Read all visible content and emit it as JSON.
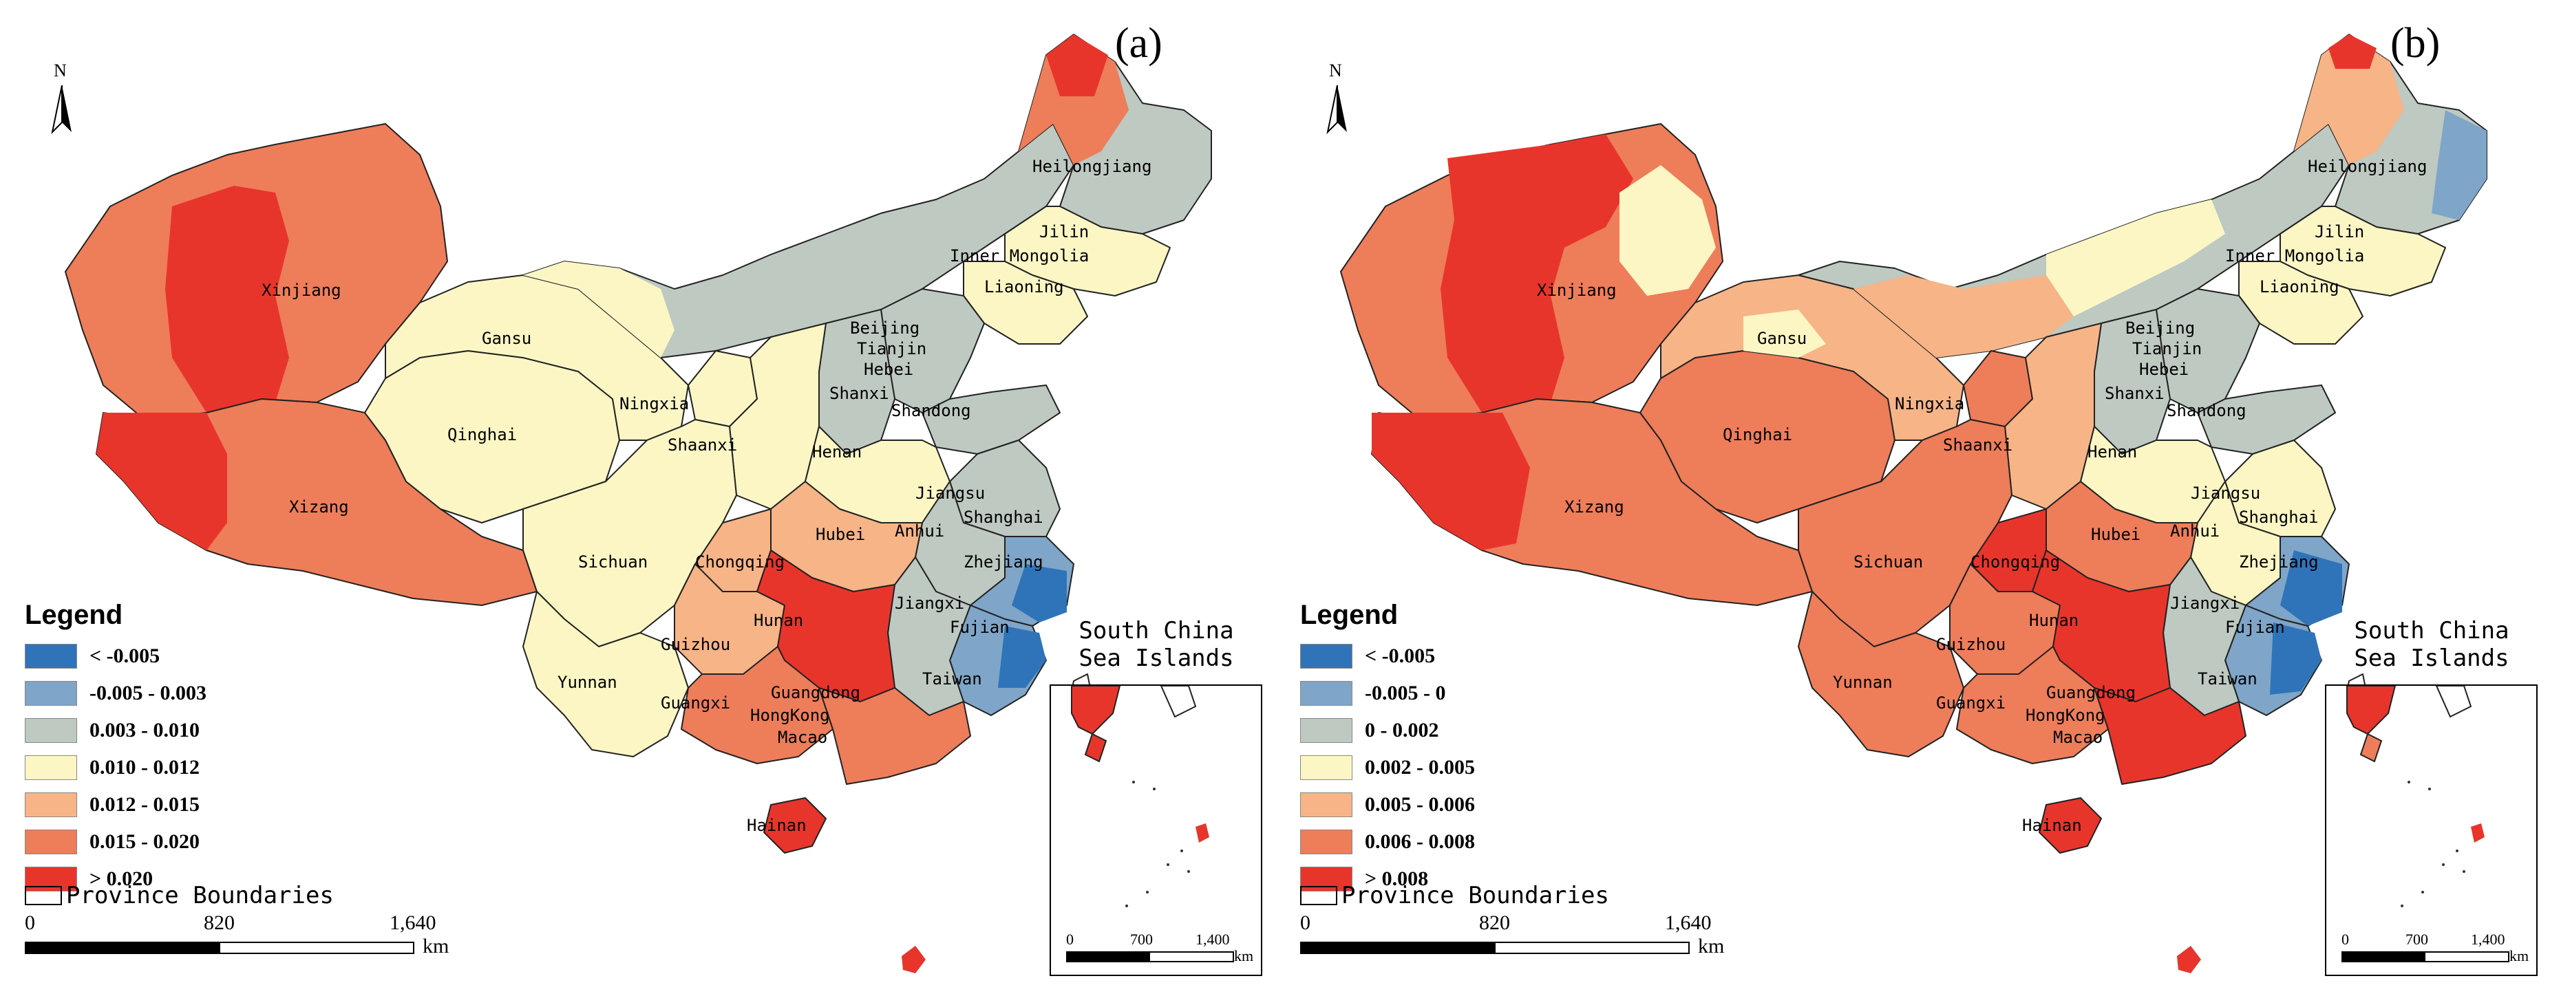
{
  "panels": [
    {
      "id": "a",
      "tag": "(a)",
      "north": "N",
      "legend": {
        "title": "Legend",
        "classes": [
          {
            "label": "< -0.005",
            "color": "#2f74b8"
          },
          {
            "label": "-0.005 - 0.003",
            "color": "#7fa5c8"
          },
          {
            "label": "0.003 - 0.010",
            "color": "#bdc9c1"
          },
          {
            "label": "0.010 - 0.012",
            "color": "#fbf6c4"
          },
          {
            "label": "0.012 - 0.015",
            "color": "#f6b487"
          },
          {
            "label": "0.015 - 0.020",
            "color": "#ee7d5a"
          },
          {
            "label": "> 0.020",
            "color": "#e8352c"
          }
        ]
      },
      "boundaries_label": "Province Boundaries",
      "scale": {
        "ticks": [
          "0",
          "820",
          "1,640"
        ],
        "unit": "km"
      },
      "inset": {
        "title_line1": "South China",
        "title_line2": "Sea Islands",
        "ticks": [
          "0",
          "700",
          "1,400"
        ],
        "unit": "km"
      }
    },
    {
      "id": "b",
      "tag": "(b)",
      "north": "N",
      "legend": {
        "title": "Legend",
        "classes": [
          {
            "label": "< -0.005",
            "color": "#2f74b8"
          },
          {
            "label": "-0.005 - 0",
            "color": "#7fa5c8"
          },
          {
            "label": "0 - 0.002",
            "color": "#bdc9c1"
          },
          {
            "label": "0.002 - 0.005",
            "color": "#fbf6c4"
          },
          {
            "label": "0.005 - 0.006",
            "color": "#f6b487"
          },
          {
            "label": "0.006 - 0.008",
            "color": "#ee7d5a"
          },
          {
            "label": "> 0.008",
            "color": "#e8352c"
          }
        ]
      },
      "boundaries_label": "Province Boundaries",
      "scale": {
        "ticks": [
          "0",
          "820",
          "1,640"
        ],
        "unit": "km"
      },
      "inset": {
        "title_line1": "South China",
        "title_line2": "Sea Islands",
        "ticks": [
          "0",
          "700",
          "1,400"
        ],
        "unit": "km"
      }
    }
  ],
  "provinces": {
    "a": {
      "Heilongjiang": "Heilongjiang",
      "Jilin": "Jilin",
      "Liaoning": "Liaoning",
      "InnerMongolia": "Inner Mongolia",
      "Xinjiang": "Xinjiang",
      "Gansu": "Gansu",
      "Qinghai": "Qinghai",
      "Xizang": "Xizang",
      "Ningxia": "Ningxia",
      "Shaanxi": "Shaanxi",
      "Shanxi": "Shanxi",
      "Beijing": "Beijing",
      "Tianjin": "Tianjin",
      "Hebei": "Hebei",
      "Shandong": "Shandong",
      "Henan": "Henan",
      "Jiangsu": "Jiangsu",
      "Shanghai": "Shanghai",
      "Anhui": "Anhui",
      "Hubei": "Hubei",
      "Sichuan": "Sichuan",
      "Chongqing": "Chongqing",
      "Zhejiang": "Zhejiang",
      "Hunan": "Hunan",
      "Jiangxi": "Jiangxi",
      "Fujian": "Fujian",
      "Guizhou": "Guizhou",
      "Taiwan": "Taiwan",
      "Yunnan": "Yunnan",
      "Guangxi": "Guangxi",
      "Guangdong": "Guangdong",
      "HongKong": "HongKong",
      "Macao": "Macao",
      "Hainan": "Hainan"
    },
    "b": {
      "Heilongjiang": "Heilongjiang",
      "Jilin": "Jilin",
      "Liaoning": "Liaoning",
      "InnerMongolia": "Inner Mongolia",
      "Xinjiang": "Xinjiang",
      "Gansu": "Gansu",
      "Qinghai": "Qinghai",
      "Xizang": "Xizang",
      "Ningxia": "Ningxia",
      "Shaanxi": "Shaanxi",
      "Shanxi": "Shanxi",
      "Beijing": "Beijing",
      "Tianjin": "Tianjin",
      "Hebei": "Hebei",
      "Shandong": "Shandong",
      "Henan": "Henan",
      "Jiangsu": "Jiangsu",
      "Shanghai": "Shanghai",
      "Anhui": "Anhui",
      "Hubei": "Hubei",
      "Sichuan": "Sichuan",
      "Chongqing": "Chongqing",
      "Zhejiang": "Zhejiang",
      "Hunan": "Hunan",
      "Jiangxi": "Jiangxi",
      "Fujian": "Fujian",
      "Guizhou": "Guizhou",
      "Taiwan": "Taiwan",
      "Yunnan": "Yunnan",
      "Guangxi": "Guangxi",
      "Guangdong": "Guangdong",
      "HongKong": "HongKong",
      "Macao": "Macao",
      "Hainan": "Hainan"
    }
  }
}
